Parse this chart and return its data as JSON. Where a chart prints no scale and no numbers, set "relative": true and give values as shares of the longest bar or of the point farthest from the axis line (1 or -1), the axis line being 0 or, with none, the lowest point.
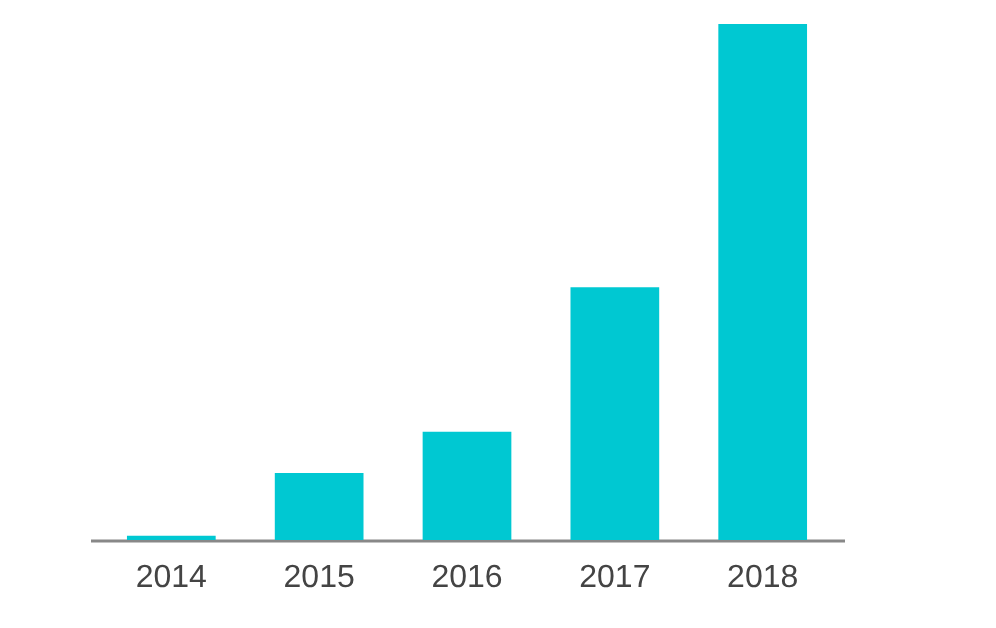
{
  "chart_data": {
    "type": "bar",
    "relative": true,
    "categories": [
      "2014",
      "2015",
      "2016",
      "2017",
      "2018"
    ],
    "values": [
      0.008,
      0.13,
      0.21,
      0.49,
      1
    ],
    "color": "#00c8d2"
  }
}
